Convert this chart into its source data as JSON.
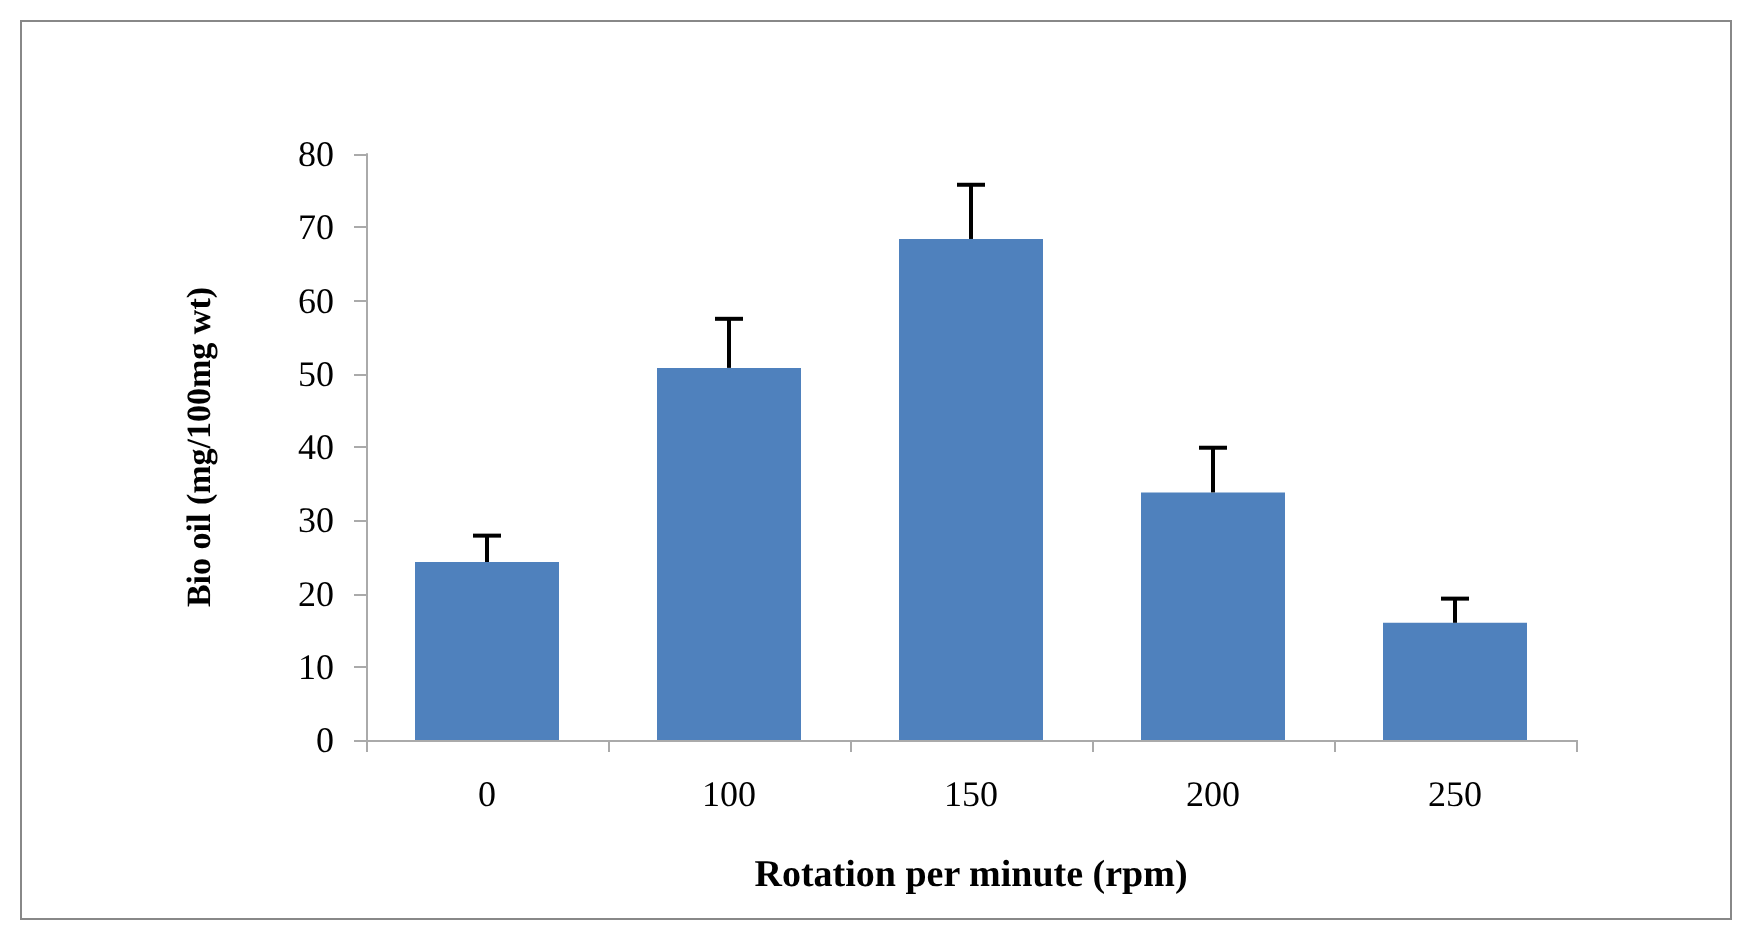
{
  "chart_data": {
    "type": "bar",
    "xlabel": "Rotation per minute (rpm)",
    "ylabel": "Bio oil (mg/100mg wt)",
    "categories": [
      "0",
      "100",
      "150",
      "200",
      "250"
    ],
    "values": [
      24.3,
      50.8,
      68.4,
      33.8,
      16.0
    ],
    "errors": [
      [
        24.3,
        27.9
      ],
      [
        50.8,
        57.5
      ],
      [
        68.4,
        75.8
      ],
      [
        33.8,
        39.9
      ],
      [
        16.0,
        19.3
      ]
    ],
    "color": "#4f81bd",
    "ylim": [
      0,
      80
    ],
    "yticks": [
      0,
      10,
      20,
      30,
      40,
      50,
      60,
      70,
      80
    ],
    "grid": false
  }
}
